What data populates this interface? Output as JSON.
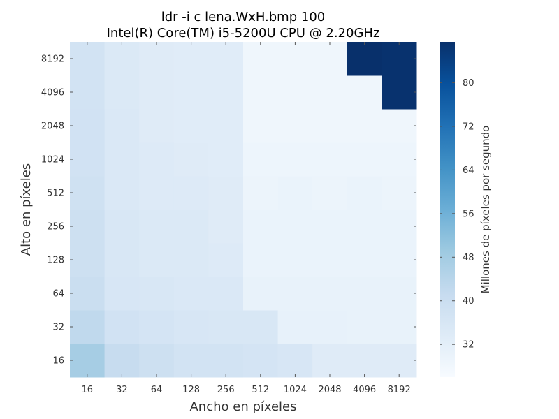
{
  "chart_data": {
    "type": "heatmap",
    "title": [
      "ldr -i c lena.WxH.bmp 100",
      "Intel(R) Core(TM) i5-5200U CPU @ 2.20GHz"
    ],
    "xlabel": "Ancho en píxeles",
    "ylabel": "Alto en píxeles",
    "x_categories": [
      "16",
      "32",
      "64",
      "128",
      "256",
      "512",
      "1024",
      "2048",
      "4096",
      "8192"
    ],
    "y_categories": [
      "16",
      "32",
      "64",
      "128",
      "256",
      "512",
      "1024",
      "2048",
      "4096",
      "8192"
    ],
    "values": [
      [
        47.5,
        41.0,
        39.0,
        37.5,
        37.5,
        37.0,
        36.0,
        33.5,
        33.5,
        33.5
      ],
      [
        42.5,
        38.0,
        37.0,
        36.0,
        35.5,
        35.5,
        31.0,
        31.0,
        30.5,
        30.5
      ],
      [
        40.0,
        36.0,
        35.5,
        35.0,
        35.0,
        30.5,
        30.5,
        30.5,
        30.5,
        30.5
      ],
      [
        39.0,
        35.5,
        34.5,
        34.5,
        34.0,
        30.0,
        30.0,
        30.0,
        30.0,
        30.0
      ],
      [
        39.0,
        35.5,
        34.5,
        34.5,
        33.5,
        30.0,
        30.0,
        30.0,
        30.0,
        30.0
      ],
      [
        38.5,
        35.0,
        34.0,
        34.0,
        33.5,
        29.5,
        30.0,
        29.5,
        30.0,
        29.5
      ],
      [
        38.0,
        35.0,
        34.0,
        33.5,
        33.0,
        29.0,
        29.0,
        29.0,
        29.0,
        29.0
      ],
      [
        38.0,
        35.0,
        33.5,
        33.0,
        33.0,
        28.5,
        28.5,
        28.5,
        28.5,
        28.5
      ],
      [
        37.5,
        34.5,
        33.5,
        33.0,
        33.0,
        28.5,
        28.5,
        28.5,
        28.5,
        87.0
      ],
      [
        37.5,
        34.5,
        33.5,
        33.0,
        33.0,
        28.5,
        28.5,
        28.5,
        87.5,
        87.0
      ]
    ],
    "colorbar": {
      "label": "Millones de píxeles por segundo",
      "min": 26,
      "max": 87.5,
      "ticks": [
        32,
        40,
        48,
        56,
        64,
        72,
        80
      ],
      "colormap": "Blues",
      "stops": [
        "#f7fbff",
        "#deebf7",
        "#c6dbef",
        "#9ecae1",
        "#6baed6",
        "#4292c6",
        "#2171b5",
        "#08519c",
        "#08306b"
      ]
    }
  }
}
